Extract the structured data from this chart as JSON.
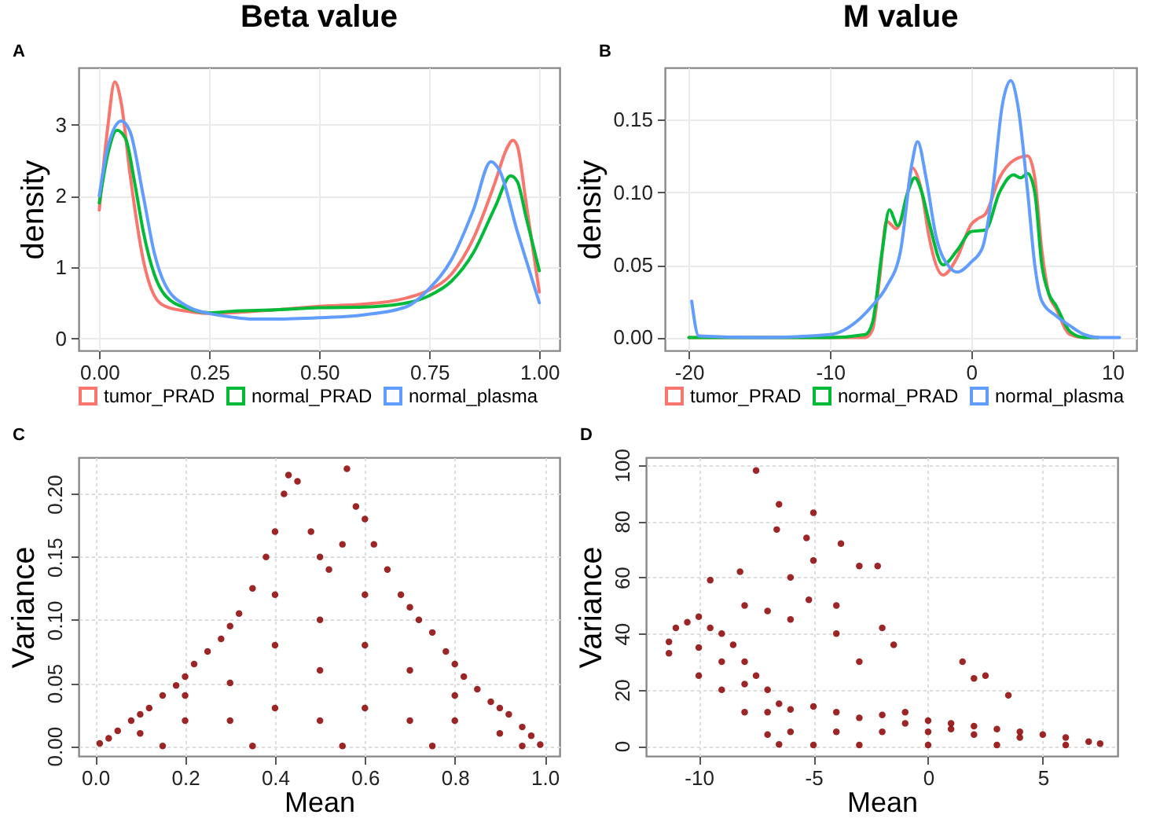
{
  "chart_data": [
    {
      "type": "line",
      "title": "Beta value",
      "ylabel": "density",
      "annotations": [
        "A"
      ],
      "legend": "bottom",
      "grid": true,
      "line_style": "solid",
      "marker": "none",
      "xlim": [
        -0.047,
        1.046
      ],
      "ylim": [
        -0.17,
        3.8
      ],
      "xticks": [
        {
          "value": 0,
          "label": "0.00"
        },
        {
          "value": 0.25,
          "label": "0.25"
        },
        {
          "value": 0.5,
          "label": "0.50"
        },
        {
          "value": 0.75,
          "label": "0.75"
        },
        {
          "value": 1,
          "label": "1.00"
        }
      ],
      "yticks": [
        0,
        1,
        2,
        3
      ],
      "series": [
        {
          "name": "tumor_PRAD",
          "color": "#f8766d",
          "x": [
            0,
            0.02,
            0.035,
            0.05,
            0.07,
            0.1,
            0.125,
            0.15,
            0.2,
            0.25,
            0.3,
            0.4,
            0.5,
            0.6,
            0.7,
            0.75,
            0.8,
            0.85,
            0.9,
            0.925,
            0.94,
            0.95,
            0.97,
            1.0
          ],
          "values": [
            1.8,
            3.0,
            3.6,
            3.3,
            2.3,
            1.1,
            0.6,
            0.45,
            0.38,
            0.35,
            0.36,
            0.4,
            0.45,
            0.48,
            0.57,
            0.68,
            0.9,
            1.4,
            2.2,
            2.65,
            2.78,
            2.7,
            1.9,
            0.65
          ]
        },
        {
          "name": "normal_PRAD",
          "color": "#00ba38",
          "x": [
            0,
            0.02,
            0.04,
            0.06,
            0.08,
            0.1,
            0.125,
            0.15,
            0.2,
            0.25,
            0.3,
            0.4,
            0.5,
            0.6,
            0.7,
            0.75,
            0.8,
            0.85,
            0.9,
            0.935,
            0.95,
            0.97,
            1.0
          ],
          "values": [
            1.9,
            2.6,
            2.92,
            2.8,
            2.2,
            1.5,
            0.9,
            0.6,
            0.42,
            0.36,
            0.38,
            0.4,
            0.43,
            0.44,
            0.5,
            0.6,
            0.8,
            1.2,
            1.85,
            2.28,
            2.2,
            1.7,
            0.95
          ]
        },
        {
          "name": "normal_plasma",
          "color": "#619cff",
          "x": [
            0,
            0.02,
            0.05,
            0.07,
            0.1,
            0.125,
            0.15,
            0.2,
            0.25,
            0.3,
            0.35,
            0.4,
            0.5,
            0.6,
            0.7,
            0.75,
            0.8,
            0.85,
            0.89,
            0.91,
            0.95,
            0.97,
            1.0
          ],
          "values": [
            2.0,
            2.7,
            3.05,
            2.9,
            2.0,
            1.2,
            0.75,
            0.45,
            0.35,
            0.3,
            0.27,
            0.27,
            0.29,
            0.33,
            0.45,
            0.7,
            1.1,
            1.8,
            2.48,
            2.35,
            1.5,
            1.1,
            0.5
          ]
        }
      ]
    },
    {
      "type": "line",
      "title": "M value",
      "ylabel": "density",
      "annotations": [
        "B"
      ],
      "legend": "bottom",
      "grid": true,
      "line_style": "solid",
      "marker": "none",
      "xlim": [
        -21.7,
        11.7
      ],
      "ylim": [
        -0.009,
        0.186
      ],
      "xticks": [
        -20,
        -10,
        0,
        10
      ],
      "yticks": [
        {
          "value": 0,
          "label": "0.00"
        },
        {
          "value": 0.05,
          "label": "0.05"
        },
        {
          "value": 0.1,
          "label": "0.10"
        },
        {
          "value": 0.15,
          "label": "0.15"
        }
      ],
      "series": [
        {
          "name": "tumor_PRAD",
          "color": "#f8766d",
          "x": [
            -20,
            -10,
            -7.5,
            -7,
            -6.5,
            -6,
            -5.3,
            -4.5,
            -4.2,
            -3.5,
            -3,
            -2,
            -1,
            0,
            0.5,
            1,
            2,
            3,
            4,
            4.5,
            5,
            5.5,
            6,
            7,
            8,
            9
          ],
          "values": [
            0,
            0,
            0,
            0.005,
            0.04,
            0.08,
            0.075,
            0.1,
            0.117,
            0.1,
            0.07,
            0.043,
            0.055,
            0.078,
            0.082,
            0.085,
            0.11,
            0.122,
            0.125,
            0.11,
            0.06,
            0.03,
            0.02,
            0.002,
            0,
            0
          ]
        },
        {
          "name": "normal_PRAD",
          "color": "#00ba38",
          "x": [
            -20,
            -10,
            -7.5,
            -7,
            -6.3,
            -5.8,
            -5.2,
            -4.5,
            -4,
            -3.5,
            -3,
            -2,
            -1,
            0,
            1,
            2,
            3,
            3.5,
            4,
            4.5,
            5,
            5.5,
            6,
            7,
            8,
            9
          ],
          "values": [
            0,
            0,
            0.002,
            0.01,
            0.06,
            0.088,
            0.077,
            0.1,
            0.11,
            0.1,
            0.08,
            0.05,
            0.06,
            0.073,
            0.074,
            0.1,
            0.112,
            0.11,
            0.113,
            0.1,
            0.05,
            0.03,
            0.022,
            0.004,
            0,
            0
          ]
        },
        {
          "name": "normal_plasma",
          "color": "#619cff",
          "x": [
            -19.8,
            -19.3,
            -15,
            -10,
            -8,
            -7,
            -6,
            -5,
            -4.2,
            -3.8,
            -3.2,
            -2.5,
            -1.5,
            -1,
            0,
            0.8,
            1.5,
            2.2,
            2.8,
            3.3,
            4,
            4.5,
            5,
            6,
            7,
            8,
            9,
            10.5
          ],
          "values": [
            0.025,
            0.001,
            0,
            0.002,
            0.012,
            0.022,
            0.035,
            0.06,
            0.12,
            0.135,
            0.11,
            0.07,
            0.048,
            0.045,
            0.052,
            0.062,
            0.1,
            0.16,
            0.177,
            0.16,
            0.1,
            0.05,
            0.025,
            0.015,
            0.008,
            0.002,
            0,
            0
          ]
        }
      ]
    },
    {
      "type": "scatter",
      "xlabel": "Mean",
      "ylabel": "Variance",
      "annotations": [
        "C"
      ],
      "grid": true,
      "marker": "circle",
      "xlim": [
        -0.037,
        1.033
      ],
      "ylim": [
        -0.008,
        0.229
      ],
      "xticks": [
        {
          "value": 0,
          "label": "0.0"
        },
        {
          "value": 0.2,
          "label": "0.2"
        },
        {
          "value": 0.4,
          "label": "0.4"
        },
        {
          "value": 0.6,
          "label": "0.6"
        },
        {
          "value": 0.8,
          "label": "0.8"
        },
        {
          "value": 1,
          "label": "1.0"
        }
      ],
      "yticks": [
        {
          "value": 0,
          "label": "0.00"
        },
        {
          "value": 0.05,
          "label": "0.05"
        },
        {
          "value": 0.1,
          "label": "0.10"
        },
        {
          "value": 0.15,
          "label": "0.15"
        },
        {
          "value": 0.2,
          "label": "0.20"
        }
      ],
      "series": [
        {
          "color": "#8b0000",
          "x": [
            0.01,
            0.03,
            0.05,
            0.08,
            0.1,
            0.12,
            0.15,
            0.18,
            0.2,
            0.22,
            0.25,
            0.28,
            0.3,
            0.32,
            0.35,
            0.38,
            0.4,
            0.42,
            0.43,
            0.45,
            0.48,
            0.5,
            0.52,
            0.55,
            0.56,
            0.58,
            0.6,
            0.62,
            0.65,
            0.68,
            0.7,
            0.72,
            0.75,
            0.78,
            0.8,
            0.82,
            0.85,
            0.88,
            0.9,
            0.92,
            0.95,
            0.97,
            0.99,
            0.1,
            0.2,
            0.2,
            0.3,
            0.3,
            0.4,
            0.4,
            0.4,
            0.5,
            0.5,
            0.5,
            0.6,
            0.6,
            0.6,
            0.7,
            0.7,
            0.8,
            0.8,
            0.9,
            0.15,
            0.35,
            0.55,
            0.75,
            0.95
          ],
          "values": [
            0.002,
            0.006,
            0.012,
            0.02,
            0.025,
            0.03,
            0.04,
            0.048,
            0.055,
            0.065,
            0.075,
            0.085,
            0.095,
            0.105,
            0.125,
            0.15,
            0.17,
            0.2,
            0.215,
            0.21,
            0.17,
            0.15,
            0.14,
            0.16,
            0.22,
            0.19,
            0.18,
            0.16,
            0.14,
            0.12,
            0.11,
            0.1,
            0.09,
            0.075,
            0.065,
            0.055,
            0.045,
            0.035,
            0.03,
            0.025,
            0.015,
            0.008,
            0.001,
            0.01,
            0.02,
            0.04,
            0.02,
            0.05,
            0.03,
            0.08,
            0.12,
            0.02,
            0.06,
            0.1,
            0.03,
            0.08,
            0.12,
            0.02,
            0.06,
            0.02,
            0.04,
            0.01,
            0,
            0,
            0,
            0,
            0
          ]
        }
      ]
    },
    {
      "type": "scatter",
      "xlabel": "Mean",
      "ylabel": "Variance",
      "annotations": [
        "D"
      ],
      "grid": true,
      "marker": "circle",
      "xlim": [
        -12.3,
        8.26
      ],
      "ylim": [
        -3.6,
        102.7
      ],
      "xticks": [
        -10,
        -5,
        0,
        5
      ],
      "yticks": [
        0,
        20,
        40,
        60,
        80,
        100
      ],
      "series": [
        {
          "color": "#8b0000",
          "x": [
            -11.3,
            -11,
            -10.5,
            -10,
            -9.5,
            -9,
            -8.5,
            -8,
            -7.5,
            -7,
            -6.5,
            -6,
            -5,
            -4,
            -3,
            -2,
            -1,
            0,
            1,
            2,
            3,
            4,
            5,
            6,
            7,
            7.5,
            -11.3,
            -10,
            -9,
            -8,
            -7,
            -6.5,
            -5,
            -3,
            0,
            3,
            6,
            -7.5,
            -6.5,
            -6.6,
            -5,
            -5.3,
            -3.8,
            -5,
            -6,
            -8.2,
            -9.5,
            -3,
            -2.2,
            -4,
            -5.2,
            -2,
            -1.5,
            1.5,
            2.5,
            2,
            3.5,
            -3,
            -4,
            -6,
            -7,
            -8,
            -10,
            -9,
            -8,
            -7,
            -6,
            -4,
            -2,
            0,
            2,
            4,
            -1,
            1
          ],
          "values": [
            37,
            42,
            44,
            46,
            42,
            40,
            36,
            30,
            25,
            20,
            15,
            13,
            14,
            12,
            10,
            11,
            12,
            9,
            8,
            7,
            6,
            5,
            4,
            3,
            1.5,
            0.8,
            33,
            25,
            20,
            12,
            4,
            0.5,
            0.3,
            0.3,
            0.3,
            0.3,
            0.3,
            98,
            86,
            77,
            83,
            74,
            72,
            66,
            60,
            62,
            59,
            64,
            64,
            50,
            52,
            42,
            36,
            30,
            25,
            24,
            18,
            30,
            40,
            45,
            48,
            50,
            35,
            30,
            22,
            12,
            5,
            5,
            5,
            5,
            4,
            3,
            8,
            6
          ]
        }
      ]
    }
  ]
}
